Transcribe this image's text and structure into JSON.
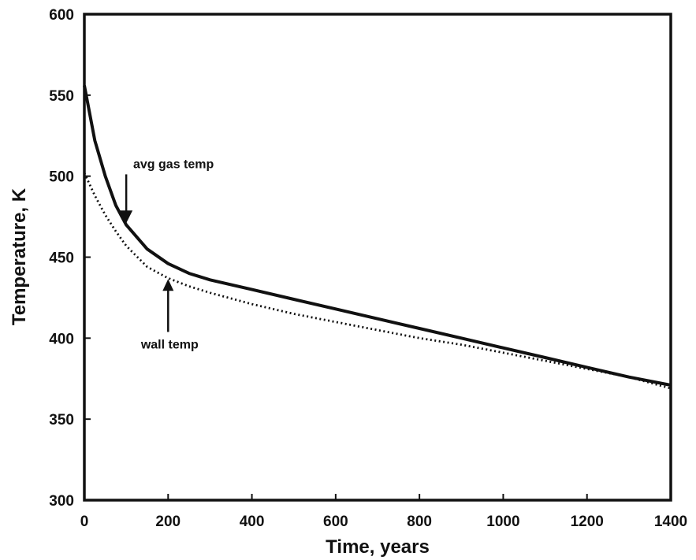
{
  "chart_data": {
    "type": "line",
    "title": "",
    "xlabel": "Time, years",
    "ylabel": "Temperature, K",
    "xlim": [
      0,
      1400
    ],
    "ylim": [
      300,
      600
    ],
    "x_ticks": [
      "0",
      "200",
      "400",
      "600",
      "800",
      "1000",
      "1200",
      "1400"
    ],
    "y_ticks": [
      "300",
      "350",
      "400",
      "450",
      "500",
      "550",
      "600"
    ],
    "grid": false,
    "legend": "none",
    "series": [
      {
        "name": "avg gas temp",
        "style": "solid",
        "color": "#111111",
        "x": [
          0,
          25,
          50,
          75,
          100,
          150,
          200,
          250,
          300,
          400,
          500,
          600,
          700,
          800,
          900,
          1000,
          1100,
          1200,
          1300,
          1400
        ],
        "y": [
          556,
          522,
          500,
          482,
          470,
          455,
          446,
          440,
          436,
          430,
          424,
          418,
          412,
          406,
          400,
          394,
          388,
          382,
          376,
          371
        ]
      },
      {
        "name": "wall temp",
        "style": "dotted",
        "color": "#111111",
        "x": [
          0,
          25,
          50,
          75,
          100,
          150,
          200,
          250,
          300,
          400,
          500,
          600,
          700,
          800,
          900,
          1000,
          1100,
          1200,
          1300,
          1400
        ],
        "y": [
          502,
          488,
          476,
          466,
          457,
          444,
          437,
          432,
          428,
          421,
          415,
          410,
          405,
          400,
          396,
          391,
          386,
          381,
          376,
          369
        ]
      }
    ],
    "annotations": [
      {
        "text": "avg gas temp",
        "x": 100,
        "y": 505,
        "arrow_to": [
          100,
          471
        ],
        "arrow": "down"
      },
      {
        "text": "wall temp",
        "x": 200,
        "y": 398,
        "arrow_to": [
          200,
          437
        ],
        "arrow": "up"
      }
    ]
  }
}
